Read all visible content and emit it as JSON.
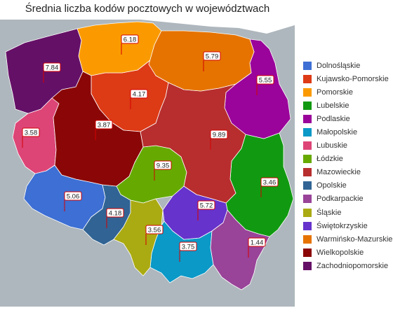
{
  "title": "Średnia liczba kodów pocztowych w województwach",
  "colors": {
    "sea": "#aab4ba",
    "land_outside": "#aeb7bd",
    "label_border": "#d40000",
    "label_fill": "#ffffff"
  },
  "regions": [
    {
      "name": "Dolnośląskie",
      "value": "5.06",
      "color": "#3d6fd4"
    },
    {
      "name": "Kujawsko-Pomorskie",
      "value": "4.17",
      "color": "#dd3a16"
    },
    {
      "name": "Pomorskie",
      "value": "6.18",
      "color": "#fb9a00"
    },
    {
      "name": "Lubelskie",
      "value": "3.46",
      "color": "#119a11"
    },
    {
      "name": "Podlaskie",
      "value": "5.55",
      "color": "#9a049a"
    },
    {
      "name": "Małopolskie",
      "value": "3.75",
      "color": "#0b99c7"
    },
    {
      "name": "Lubuskie",
      "value": "3.58",
      "color": "#dd4577"
    },
    {
      "name": "Łódzkie",
      "value": "9.35",
      "color": "#66aa01"
    },
    {
      "name": "Mazowieckie",
      "value": "9.89",
      "color": "#b82e2e"
    },
    {
      "name": "Opolskie",
      "value": "4.18",
      "color": "#316494"
    },
    {
      "name": "Podkarpackie",
      "value": "1.44",
      "color": "#994399"
    },
    {
      "name": "Śląskie",
      "value": "3.56",
      "color": "#aaaa12"
    },
    {
      "name": "Świętokrzyskie",
      "value": "5.72",
      "color": "#6633cc"
    },
    {
      "name": "Warmińsko-Mazurskie",
      "value": "5.79",
      "color": "#e67300"
    },
    {
      "name": "Wielkopolskie",
      "value": "3.87",
      "color": "#8b0707"
    },
    {
      "name": "Zachodniopomorskie",
      "value": "7.84",
      "color": "#651067"
    }
  ]
}
